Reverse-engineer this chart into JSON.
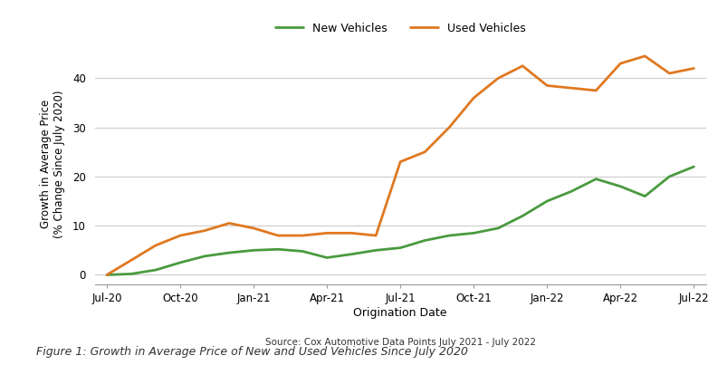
{
  "new_vehicles": {
    "x": [
      0,
      1,
      2,
      3,
      4,
      5,
      6,
      7,
      8,
      9,
      10,
      11,
      12,
      13,
      14,
      15,
      16,
      17,
      18,
      19,
      20,
      21,
      22,
      23,
      24
    ],
    "y": [
      0,
      0.2,
      1.0,
      2.5,
      3.8,
      4.5,
      5.0,
      5.2,
      4.8,
      3.5,
      4.2,
      5.0,
      5.5,
      7.0,
      8.0,
      8.5,
      9.5,
      12.0,
      15.0,
      17.0,
      19.5,
      18.0,
      16.0,
      20.0,
      22.0
    ],
    "color": "#4a9a3f",
    "label": "New Vehicles"
  },
  "used_vehicles": {
    "x": [
      0,
      1,
      2,
      3,
      4,
      5,
      6,
      7,
      8,
      9,
      10,
      11,
      12,
      13,
      14,
      15,
      16,
      17,
      18,
      19,
      20,
      21,
      22,
      23,
      24
    ],
    "y": [
      0,
      3.0,
      6.0,
      8.0,
      9.0,
      10.5,
      9.5,
      8.0,
      8.0,
      8.5,
      8.5,
      8.0,
      23.0,
      25.0,
      30.0,
      36.0,
      40.0,
      42.5,
      38.5,
      38.0,
      37.5,
      43.0,
      44.5,
      41.0,
      42.0
    ],
    "color": "#e07820",
    "label": "Used Vehicles"
  },
  "x_tick_labels": [
    "Jul-20",
    "Oct-20",
    "Jan-21",
    "Apr-21",
    "Jul-21",
    "Oct-21",
    "Jan-22",
    "Apr-22",
    "Jul-22"
  ],
  "x_tick_positions": [
    0,
    3,
    6,
    9,
    12,
    15,
    18,
    21,
    24
  ],
  "ylabel": "Growth in Average Price\n(% Change Since July 2020)",
  "xlabel": "Origination Date",
  "source": "Source: Cox Automotive Data Points July 2021 - July 2022",
  "caption": "Figure 1: Growth in Average Price of New and Used Vehicles Since July 2020",
  "ylim": [
    -2,
    47
  ],
  "yticks": [
    0,
    10,
    20,
    30,
    40
  ],
  "background_color": "#ffffff",
  "grid_color": "#cccccc",
  "line_width": 2.0
}
